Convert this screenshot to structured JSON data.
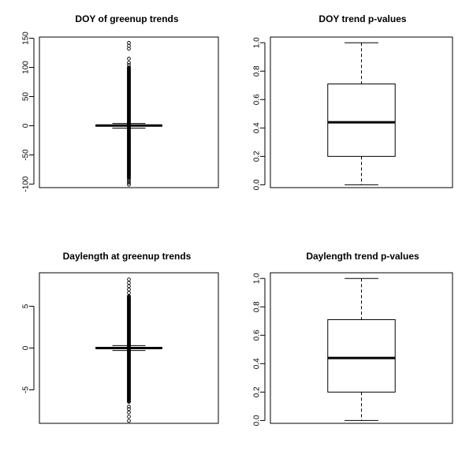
{
  "chart_data": [
    {
      "type": "boxplot",
      "title": "DOY of greenup trends",
      "ylim": [
        -106,
        152
      ],
      "yticks": [
        -100,
        -50,
        0,
        50,
        100,
        150
      ],
      "ytick_labels": [
        "-100",
        "-50",
        "0",
        "50",
        "100",
        "150"
      ],
      "box": {
        "min": -4,
        "q1": -0.6,
        "median": 0.3,
        "q3": 1.2,
        "max": 4
      },
      "outliers": {
        "dense_range": [
          -90,
          100
        ],
        "sparse_low": [
          -92,
          -95,
          -98,
          -101
        ],
        "sparse_high": [
          104,
          108,
          115,
          132,
          137,
          142
        ]
      },
      "grid": false
    },
    {
      "type": "boxplot",
      "title": "DOY trend p-values",
      "ylim": [
        -0.02,
        1.04
      ],
      "yticks": [
        0.0,
        0.2,
        0.4,
        0.6,
        0.8,
        1.0
      ],
      "ytick_labels": [
        "0.0",
        "0.2",
        "0.4",
        "0.6",
        "0.8",
        "1.0"
      ],
      "box": {
        "min": 0.0,
        "q1": 0.2,
        "median": 0.44,
        "q3": 0.71,
        "max": 1.0
      },
      "grid": false
    },
    {
      "type": "boxplot",
      "title": "Daylength at greenup trends",
      "ylim": [
        -9,
        9
      ],
      "yticks": [
        -5,
        0,
        5
      ],
      "ytick_labels": [
        "-5",
        "0",
        "5"
      ],
      "box": {
        "min": -0.3,
        "q1": -0.05,
        "median": 0.0,
        "q3": 0.05,
        "max": 0.3
      },
      "outliers": {
        "dense_range": [
          -6.5,
          6.2
        ],
        "sparse_low": [
          -7.0,
          -7.3,
          -7.7,
          -8.2,
          -8.7
        ],
        "sparse_high": [
          6.6,
          7.0,
          7.4,
          7.8,
          8.2
        ]
      },
      "grid": false
    },
    {
      "type": "boxplot",
      "title": "Daylength trend p-values",
      "ylim": [
        -0.02,
        1.04
      ],
      "yticks": [
        0.0,
        0.2,
        0.4,
        0.6,
        0.8,
        1.0
      ],
      "ytick_labels": [
        "0.0",
        "0.2",
        "0.4",
        "0.6",
        "0.8",
        "1.0"
      ],
      "box": {
        "min": 0.0,
        "q1": 0.2,
        "median": 0.44,
        "q3": 0.71,
        "max": 1.0
      },
      "grid": false
    }
  ]
}
